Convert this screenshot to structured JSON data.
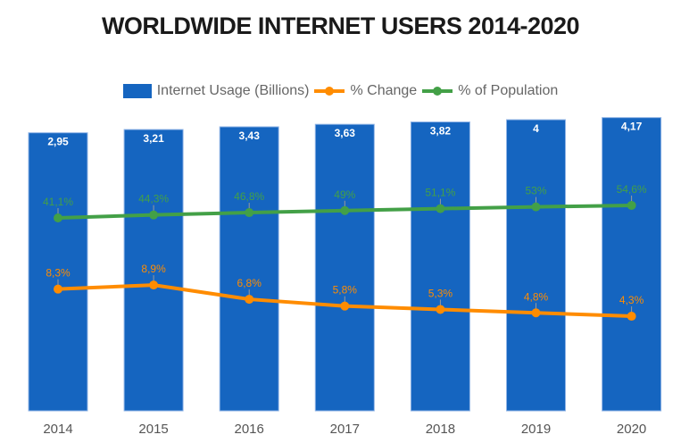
{
  "chart_data": {
    "type": "bar+line",
    "title": "WORLDWIDE INTERNET USERS 2014-2020",
    "categories": [
      "2014",
      "2015",
      "2016",
      "2017",
      "2018",
      "2019",
      "2020"
    ],
    "legend_position": "top",
    "grid": false,
    "series": [
      {
        "name": "Internet Usage (Billions)",
        "type": "bar",
        "color": "#1565c0",
        "values": [
          2.95,
          3.21,
          3.43,
          3.63,
          3.82,
          4,
          4.17
        ],
        "labels": [
          "2,95",
          "3,21",
          "3,43",
          "3,63",
          "3,82",
          "4",
          "4,17"
        ],
        "ylim": [
          -19.4,
          4.29
        ]
      },
      {
        "name": "% Change",
        "type": "line",
        "color": "#ff8c00",
        "values": [
          8.3,
          8.9,
          6.8,
          5.8,
          5.3,
          4.8,
          4.3
        ],
        "labels": [
          "8,3%",
          "8,9%",
          "6,8%",
          "5,8%",
          "5,3%",
          "4,8%",
          "4,3%"
        ],
        "ylim": [
          -9.65,
          33.8
        ]
      },
      {
        "name": "% of Population",
        "type": "line",
        "color": "#43a047",
        "values": [
          41.1,
          44.3,
          46.8,
          49,
          51.1,
          53,
          54.6
        ],
        "labels": [
          "41,1%",
          "44,3%",
          "46,8%",
          "49%",
          "51,1%",
          "53%",
          "54,6%"
        ],
        "ylim": [
          -166.6,
          150.7
        ]
      }
    ]
  }
}
